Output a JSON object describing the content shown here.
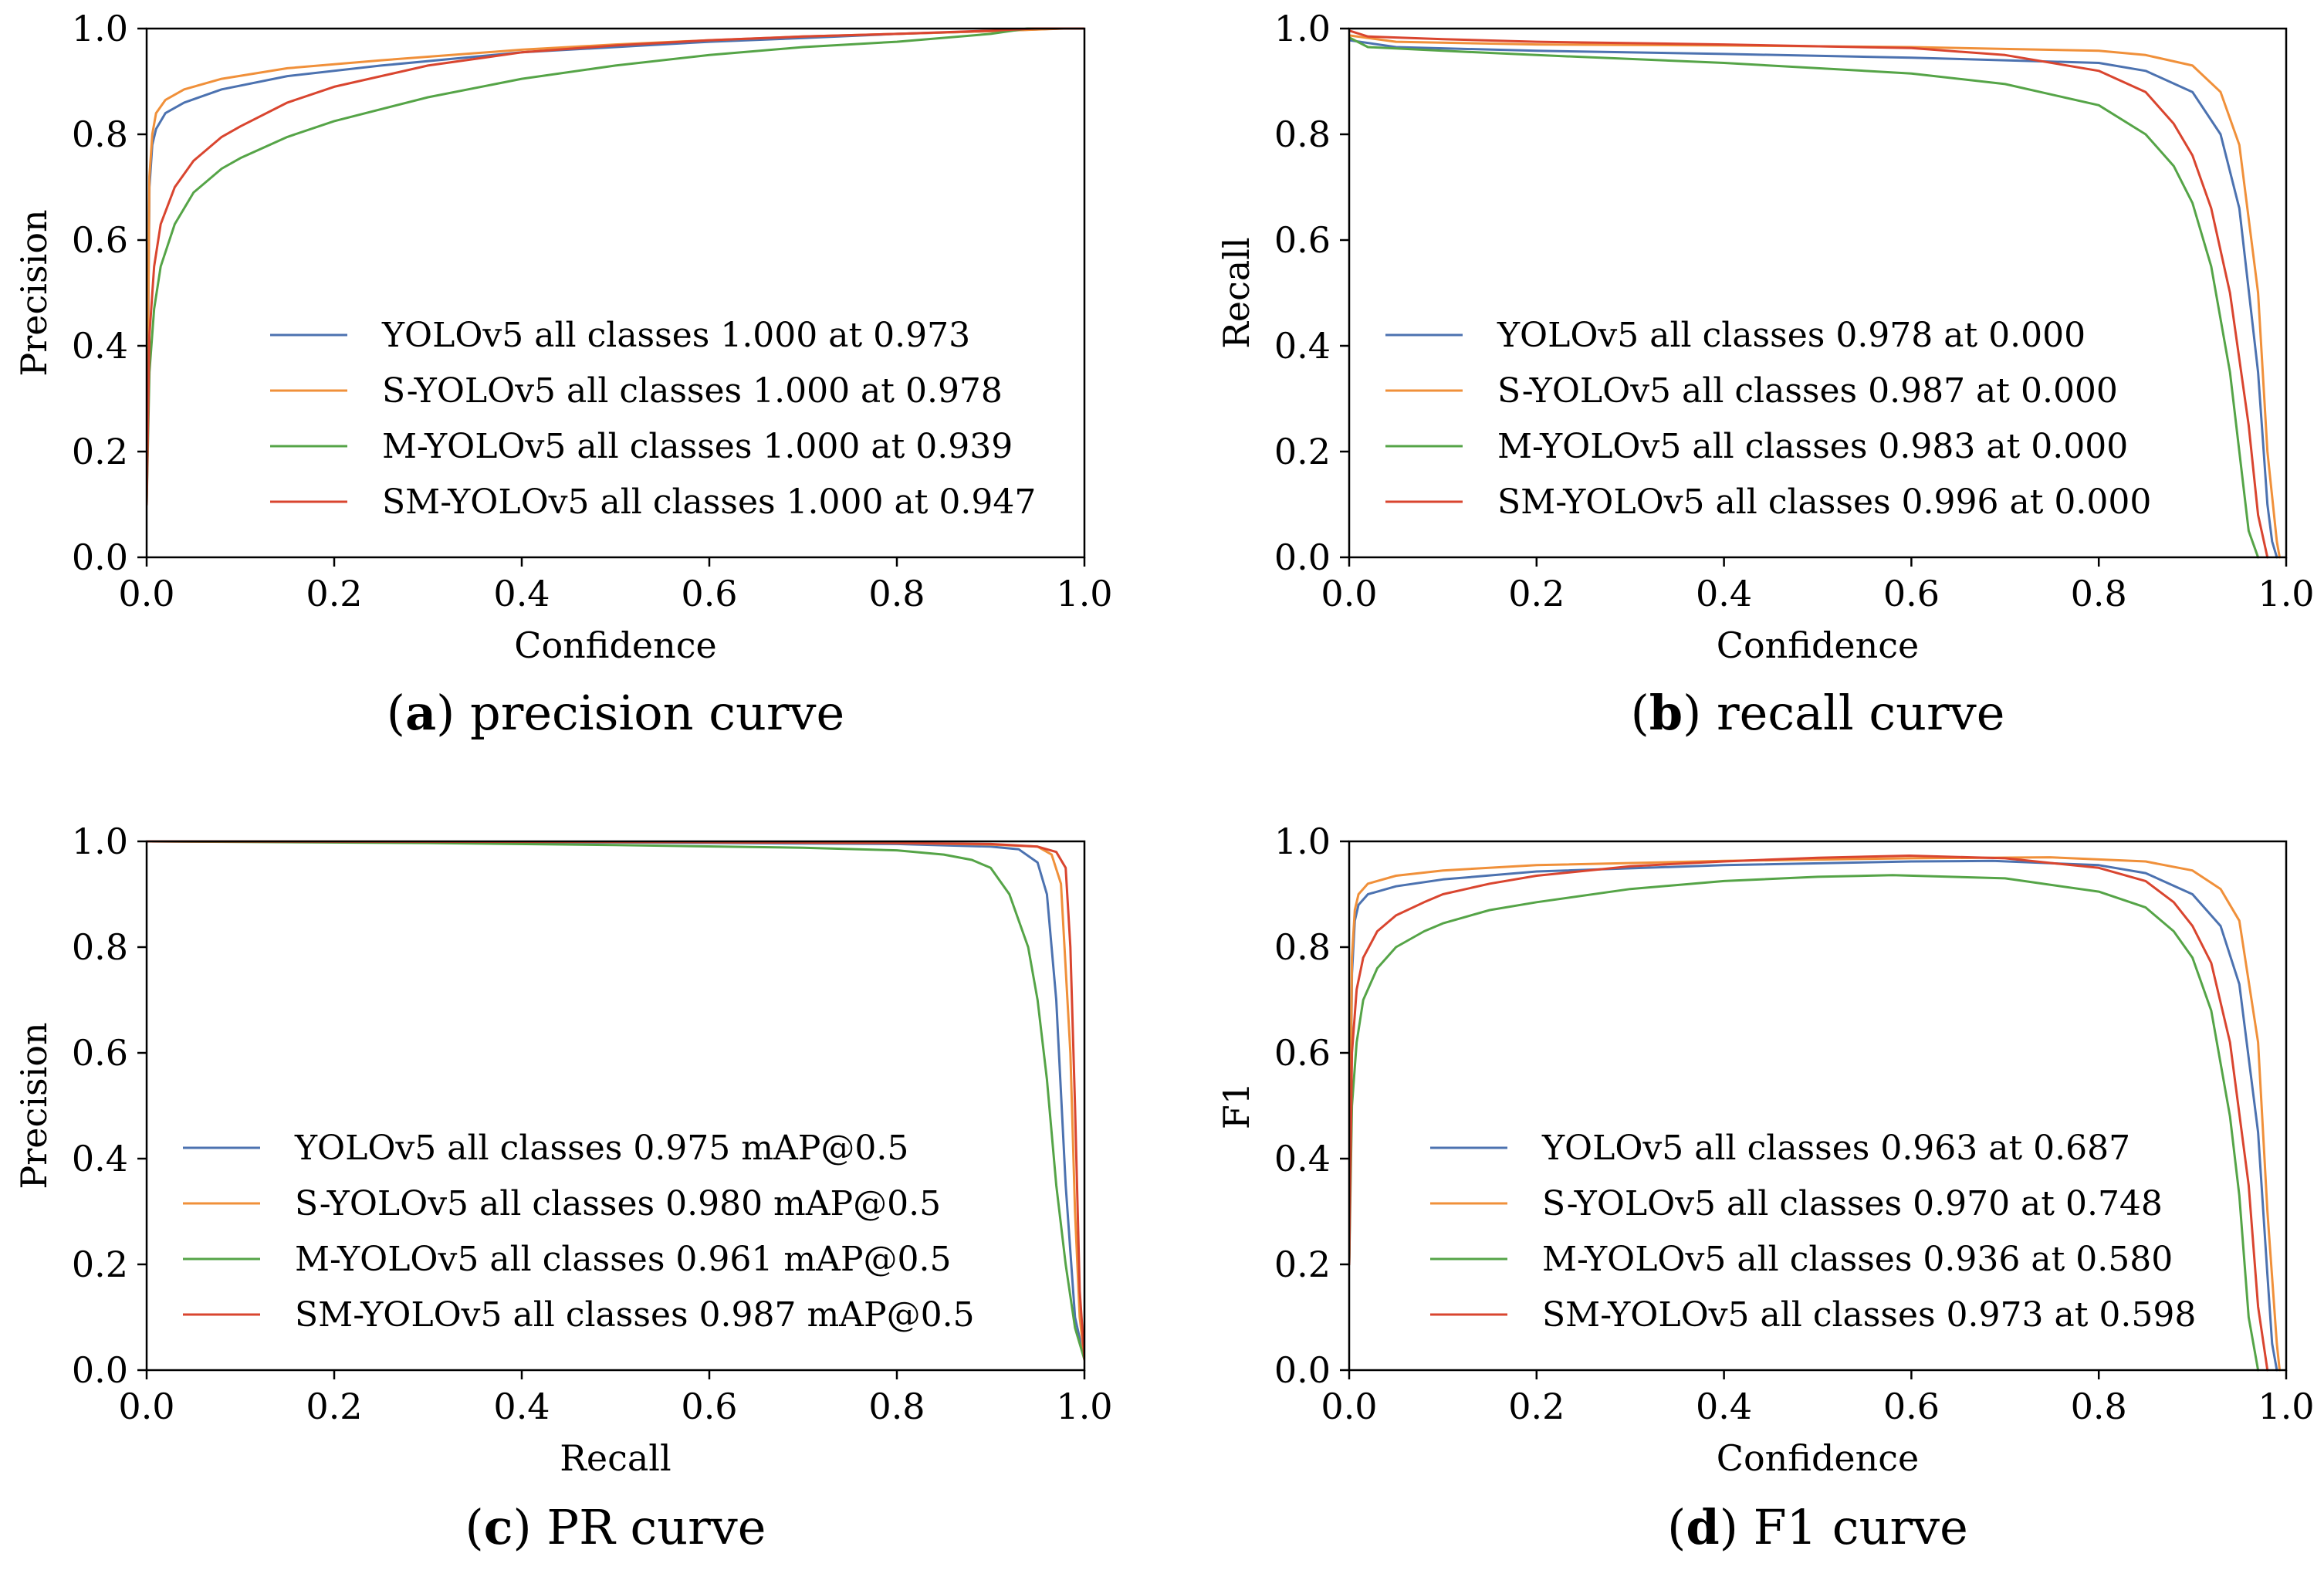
{
  "figure": {
    "colors": {
      "YOLOv5": "#4c72b0",
      "S-YOLOv5": "#f0903a",
      "M-YOLOv5": "#55a447",
      "SM-YOLOv5": "#d9452f"
    }
  },
  "chart_data": [
    {
      "type": "line",
      "id": "a",
      "caption_letter": "a",
      "caption_text": "precision curve",
      "xlabel": "Confidence",
      "ylabel": "Precision",
      "xlim": [
        0,
        1
      ],
      "ylim": [
        0,
        1
      ],
      "xticks": [
        "0.0",
        "0.2",
        "0.4",
        "0.6",
        "0.8",
        "1.0"
      ],
      "yticks": [
        "0.0",
        "0.2",
        "0.4",
        "0.6",
        "0.8",
        "1.0"
      ],
      "legend_position": "center-right",
      "series": [
        {
          "name": "YOLOv5",
          "label": "YOLOv5 all classes 1.000 at 0.973",
          "x": [
            0,
            0.003,
            0.006,
            0.01,
            0.02,
            0.04,
            0.08,
            0.15,
            0.25,
            0.4,
            0.5,
            0.6,
            0.7,
            0.8,
            0.9,
            0.973,
            1.0
          ],
          "y": [
            0.1,
            0.7,
            0.78,
            0.81,
            0.84,
            0.86,
            0.885,
            0.91,
            0.93,
            0.955,
            0.965,
            0.975,
            0.982,
            0.99,
            0.995,
            1.0,
            1.0
          ]
        },
        {
          "name": "S-YOLOv5",
          "label": "S-YOLOv5 all classes 1.000 at 0.978",
          "x": [
            0,
            0.003,
            0.006,
            0.01,
            0.02,
            0.04,
            0.08,
            0.15,
            0.25,
            0.4,
            0.5,
            0.6,
            0.7,
            0.8,
            0.9,
            0.978,
            1.0
          ],
          "y": [
            0.1,
            0.72,
            0.8,
            0.84,
            0.865,
            0.885,
            0.905,
            0.925,
            0.94,
            0.96,
            0.97,
            0.978,
            0.985,
            0.99,
            0.995,
            1.0,
            1.0
          ]
        },
        {
          "name": "M-YOLOv5",
          "label": "M-YOLOv5 all classes 1.000 at 0.939",
          "x": [
            0,
            0.003,
            0.008,
            0.015,
            0.03,
            0.05,
            0.08,
            0.1,
            0.15,
            0.2,
            0.3,
            0.4,
            0.5,
            0.6,
            0.7,
            0.8,
            0.9,
            0.939,
            1.0
          ],
          "y": [
            0.1,
            0.35,
            0.47,
            0.55,
            0.63,
            0.69,
            0.735,
            0.755,
            0.795,
            0.825,
            0.87,
            0.905,
            0.93,
            0.95,
            0.965,
            0.975,
            0.99,
            1.0,
            1.0
          ]
        },
        {
          "name": "SM-YOLOv5",
          "label": "SM-YOLOv5 all classes 1.000 at 0.947",
          "x": [
            0,
            0.003,
            0.008,
            0.015,
            0.03,
            0.05,
            0.08,
            0.1,
            0.15,
            0.2,
            0.3,
            0.4,
            0.5,
            0.6,
            0.7,
            0.8,
            0.9,
            0.947,
            1.0
          ],
          "y": [
            0.1,
            0.42,
            0.55,
            0.63,
            0.7,
            0.75,
            0.795,
            0.815,
            0.86,
            0.89,
            0.93,
            0.955,
            0.968,
            0.978,
            0.985,
            0.99,
            0.996,
            1.0,
            1.0
          ]
        }
      ]
    },
    {
      "type": "line",
      "id": "b",
      "caption_letter": "b",
      "caption_text": "recall curve",
      "xlabel": "Confidence",
      "ylabel": "Recall",
      "xlim": [
        0,
        1
      ],
      "ylim": [
        0,
        1
      ],
      "xticks": [
        "0.0",
        "0.2",
        "0.4",
        "0.6",
        "0.8",
        "1.0"
      ],
      "yticks": [
        "0.0",
        "0.2",
        "0.4",
        "0.6",
        "0.8",
        "1.0"
      ],
      "legend_position": "center-left",
      "series": [
        {
          "name": "YOLOv5",
          "label": "YOLOv5 all classes 0.978 at 0.000",
          "x": [
            0,
            0.05,
            0.2,
            0.4,
            0.6,
            0.8,
            0.85,
            0.9,
            0.93,
            0.95,
            0.97,
            0.98,
            0.985,
            0.99
          ],
          "y": [
            0.978,
            0.965,
            0.958,
            0.952,
            0.945,
            0.935,
            0.92,
            0.88,
            0.8,
            0.66,
            0.35,
            0.1,
            0.03,
            0
          ]
        },
        {
          "name": "S-YOLOv5",
          "label": "S-YOLOv5 all classes 0.987 at 0.000",
          "x": [
            0,
            0.05,
            0.2,
            0.4,
            0.6,
            0.8,
            0.85,
            0.9,
            0.93,
            0.95,
            0.97,
            0.98,
            0.99,
            0.993
          ],
          "y": [
            0.987,
            0.975,
            0.97,
            0.968,
            0.965,
            0.958,
            0.95,
            0.93,
            0.88,
            0.78,
            0.5,
            0.2,
            0.03,
            0
          ]
        },
        {
          "name": "M-YOLOv5",
          "label": "M-YOLOv5 all classes 0.983 at 0.000",
          "x": [
            0,
            0.02,
            0.1,
            0.2,
            0.4,
            0.6,
            0.7,
            0.8,
            0.85,
            0.88,
            0.9,
            0.92,
            0.94,
            0.95,
            0.96,
            0.97
          ],
          "y": [
            0.983,
            0.965,
            0.958,
            0.95,
            0.935,
            0.915,
            0.895,
            0.855,
            0.8,
            0.74,
            0.67,
            0.55,
            0.35,
            0.2,
            0.05,
            0
          ]
        },
        {
          "name": "SM-YOLOv5",
          "label": "SM-YOLOv5 all classes 0.996 at 0.000",
          "x": [
            0,
            0.02,
            0.1,
            0.2,
            0.4,
            0.6,
            0.7,
            0.8,
            0.85,
            0.88,
            0.9,
            0.92,
            0.94,
            0.96,
            0.97,
            0.98
          ],
          "y": [
            0.996,
            0.985,
            0.98,
            0.975,
            0.97,
            0.963,
            0.95,
            0.92,
            0.88,
            0.82,
            0.76,
            0.66,
            0.5,
            0.25,
            0.08,
            0
          ]
        }
      ]
    },
    {
      "type": "line",
      "id": "c",
      "caption_letter": "c",
      "caption_text": "PR curve",
      "xlabel": "Recall",
      "ylabel": "Precision",
      "xlim": [
        0,
        1
      ],
      "ylim": [
        0,
        1
      ],
      "xticks": [
        "0.0",
        "0.2",
        "0.4",
        "0.6",
        "0.8",
        "1.0"
      ],
      "yticks": [
        "0.0",
        "0.2",
        "0.4",
        "0.6",
        "0.8",
        "1.0"
      ],
      "legend_position": "lower-left",
      "series": [
        {
          "name": "YOLOv5",
          "label": "YOLOv5 all classes 0.975 mAP@0.5",
          "x": [
            0,
            0.5,
            0.8,
            0.9,
            0.93,
            0.95,
            0.96,
            0.97,
            0.98,
            0.99,
            1.0
          ],
          "y": [
            1.0,
            0.998,
            0.995,
            0.99,
            0.985,
            0.96,
            0.9,
            0.7,
            0.35,
            0.1,
            0.02
          ]
        },
        {
          "name": "S-YOLOv5",
          "label": "S-YOLOv5 all classes 0.980 mAP@0.5",
          "x": [
            0,
            0.5,
            0.8,
            0.9,
            0.95,
            0.965,
            0.975,
            0.985,
            0.99,
            0.995,
            1.0
          ],
          "y": [
            1.0,
            0.999,
            0.997,
            0.994,
            0.99,
            0.975,
            0.92,
            0.6,
            0.3,
            0.1,
            0.02
          ]
        },
        {
          "name": "M-YOLOv5",
          "label": "M-YOLOv5 all classes 0.961 mAP@0.5",
          "x": [
            0,
            0.3,
            0.5,
            0.7,
            0.8,
            0.85,
            0.88,
            0.9,
            0.92,
            0.94,
            0.95,
            0.96,
            0.97,
            0.98,
            0.99,
            1.0
          ],
          "y": [
            1.0,
            0.997,
            0.993,
            0.988,
            0.983,
            0.975,
            0.965,
            0.95,
            0.9,
            0.8,
            0.7,
            0.55,
            0.35,
            0.2,
            0.08,
            0.02
          ]
        },
        {
          "name": "SM-YOLOv5",
          "label": "SM-YOLOv5 all classes 0.987 mAP@0.5",
          "x": [
            0,
            0.5,
            0.8,
            0.9,
            0.95,
            0.97,
            0.98,
            0.985,
            0.99,
            0.995,
            1.0
          ],
          "y": [
            1.0,
            0.999,
            0.997,
            0.995,
            0.99,
            0.98,
            0.95,
            0.8,
            0.5,
            0.15,
            0.02
          ]
        }
      ]
    },
    {
      "type": "line",
      "id": "d",
      "caption_letter": "d",
      "caption_text": "F1 curve",
      "xlabel": "Confidence",
      "ylabel": "F1",
      "xlim": [
        0,
        1
      ],
      "ylim": [
        0,
        1
      ],
      "xticks": [
        "0.0",
        "0.2",
        "0.4",
        "0.6",
        "0.8",
        "1.0"
      ],
      "yticks": [
        "0.0",
        "0.2",
        "0.4",
        "0.6",
        "0.8",
        "1.0"
      ],
      "legend_position": "center-left",
      "series": [
        {
          "name": "YOLOv5",
          "label": "YOLOv5 all classes 0.963 at 0.687",
          "x": [
            0,
            0.003,
            0.006,
            0.01,
            0.02,
            0.05,
            0.1,
            0.2,
            0.4,
            0.6,
            0.687,
            0.8,
            0.85,
            0.9,
            0.93,
            0.95,
            0.97,
            0.98,
            0.985,
            0.99
          ],
          "y": [
            0.2,
            0.75,
            0.85,
            0.88,
            0.9,
            0.915,
            0.928,
            0.943,
            0.955,
            0.962,
            0.963,
            0.955,
            0.94,
            0.9,
            0.84,
            0.73,
            0.45,
            0.18,
            0.05,
            0
          ]
        },
        {
          "name": "S-YOLOv5",
          "label": "S-YOLOv5 all classes 0.970 at 0.748",
          "x": [
            0,
            0.003,
            0.006,
            0.01,
            0.02,
            0.05,
            0.1,
            0.2,
            0.4,
            0.6,
            0.748,
            0.85,
            0.9,
            0.93,
            0.95,
            0.97,
            0.98,
            0.99,
            0.993
          ],
          "y": [
            0.2,
            0.78,
            0.87,
            0.9,
            0.92,
            0.935,
            0.945,
            0.955,
            0.963,
            0.968,
            0.97,
            0.962,
            0.945,
            0.91,
            0.85,
            0.62,
            0.3,
            0.05,
            0
          ]
        },
        {
          "name": "M-YOLOv5",
          "label": "M-YOLOv5 all classes 0.936 at 0.580",
          "x": [
            0,
            0.003,
            0.008,
            0.015,
            0.03,
            0.05,
            0.08,
            0.1,
            0.15,
            0.2,
            0.3,
            0.4,
            0.5,
            0.58,
            0.7,
            0.8,
            0.85,
            0.88,
            0.9,
            0.92,
            0.94,
            0.95,
            0.96,
            0.97
          ],
          "y": [
            0.2,
            0.5,
            0.62,
            0.7,
            0.76,
            0.8,
            0.83,
            0.845,
            0.87,
            0.885,
            0.91,
            0.925,
            0.933,
            0.936,
            0.93,
            0.905,
            0.875,
            0.83,
            0.78,
            0.68,
            0.48,
            0.33,
            0.1,
            0
          ]
        },
        {
          "name": "SM-YOLOv5",
          "label": "SM-YOLOv5 all classes 0.973 at 0.598",
          "x": [
            0,
            0.003,
            0.008,
            0.015,
            0.03,
            0.05,
            0.08,
            0.1,
            0.15,
            0.2,
            0.3,
            0.4,
            0.5,
            0.598,
            0.7,
            0.8,
            0.85,
            0.88,
            0.9,
            0.92,
            0.94,
            0.96,
            0.97,
            0.98
          ],
          "y": [
            0.2,
            0.6,
            0.72,
            0.78,
            0.83,
            0.86,
            0.885,
            0.9,
            0.92,
            0.935,
            0.953,
            0.962,
            0.969,
            0.973,
            0.968,
            0.95,
            0.925,
            0.885,
            0.84,
            0.77,
            0.62,
            0.35,
            0.12,
            0
          ]
        }
      ]
    }
  ]
}
